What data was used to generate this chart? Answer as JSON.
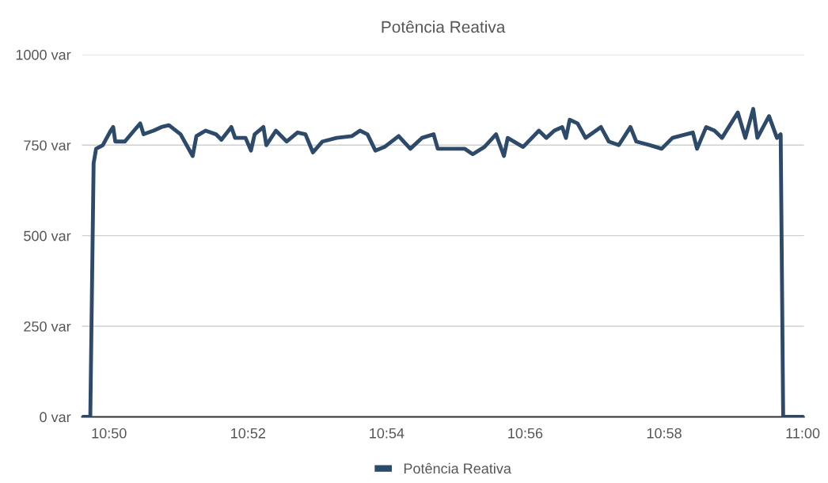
{
  "chart_data": {
    "type": "line",
    "title": "Potência Reativa",
    "x": [
      10.8268,
      10.8288,
      10.8296,
      10.8302,
      10.8318,
      10.8337,
      10.8343,
      10.8348,
      10.8371,
      10.8393,
      10.8408,
      10.8416,
      10.844,
      10.8459,
      10.8477,
      10.8505,
      10.8534,
      10.8543,
      10.8565,
      10.859,
      10.8603,
      10.8627,
      10.8636,
      10.8661,
      10.8674,
      10.8683,
      10.8704,
      10.8711,
      10.8734,
      10.876,
      10.8786,
      10.8805,
      10.8823,
      10.8846,
      10.888,
      10.8917,
      10.8936,
      10.8954,
      10.8973,
      10.8995,
      10.9029,
      10.9057,
      10.9085,
      10.9113,
      10.9123,
      10.9151,
      10.9188,
      10.9207,
      10.9235,
      10.9263,
      10.9282,
      10.9291,
      10.9328,
      10.9366,
      10.9384,
      10.9403,
      10.9422,
      10.9431,
      10.944,
      10.9459,
      10.9478,
      10.9515,
      10.9534,
      10.9558,
      10.9586,
      10.96,
      10.9633,
      10.9661,
      10.9687,
      10.9736,
      10.9746,
      10.9768,
      10.9788,
      10.9806,
      10.9844,
      10.9862,
      10.9881,
      10.9891,
      10.9919,
      10.9938,
      10.9947,
      10.9953,
      11.0003
    ],
    "series": [
      {
        "name": "Potência Reativa",
        "color": "#2e4a6a",
        "values": [
          0,
          0,
          700,
          740,
          750,
          790,
          800,
          760,
          760,
          790,
          810,
          780,
          790,
          800,
          805,
          780,
          720,
          775,
          790,
          780,
          765,
          800,
          770,
          770,
          735,
          780,
          800,
          750,
          790,
          760,
          785,
          780,
          730,
          760,
          770,
          775,
          790,
          780,
          735,
          745,
          775,
          740,
          770,
          780,
          740,
          740,
          740,
          725,
          745,
          780,
          720,
          770,
          745,
          790,
          770,
          790,
          800,
          770,
          820,
          810,
          770,
          800,
          760,
          750,
          800,
          760,
          750,
          740,
          770,
          785,
          740,
          800,
          790,
          770,
          840,
          770,
          850,
          770,
          830,
          770,
          780,
          0,
          0
        ]
      }
    ],
    "xlim": [
      10.8268,
      11.0003
    ],
    "xticks": [
      {
        "value": 10.8333,
        "label": "10:50"
      },
      {
        "value": 10.8667,
        "label": "10:52"
      },
      {
        "value": 10.9,
        "label": "10:54"
      },
      {
        "value": 10.9333,
        "label": "10:56"
      },
      {
        "value": 10.9667,
        "label": "10:58"
      },
      {
        "value": 11.0,
        "label": "11:00"
      }
    ],
    "ylim": [
      0,
      1000
    ],
    "yticks": [
      {
        "value": 0,
        "label": "0 var"
      },
      {
        "value": 250,
        "label": "250 var"
      },
      {
        "value": 500,
        "label": "500 var"
      },
      {
        "value": 750,
        "label": "750 var"
      },
      {
        "value": 1000,
        "label": "1000 var"
      }
    ],
    "grid": "y",
    "legend": "bottom",
    "marker": "none",
    "line_style": "solid"
  }
}
